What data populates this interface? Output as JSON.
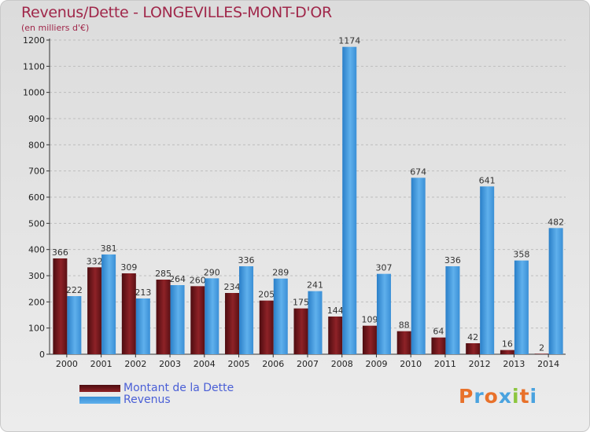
{
  "colors": {
    "dette": "#7a1a1d",
    "revenus": "#3f97dc",
    "title": "#a0274a",
    "legend_text": "#4a5fd6"
  },
  "chart_data": {
    "type": "bar",
    "title": "Revenus/Dette - LONGEVILLES-MONT-D'OR",
    "subtitle": "(en milliers d'€)",
    "categories": [
      "2000",
      "2001",
      "2002",
      "2003",
      "2004",
      "2005",
      "2006",
      "2007",
      "2008",
      "2009",
      "2010",
      "2011",
      "2012",
      "2013",
      "2014"
    ],
    "series": [
      {
        "name": "Montant de la Dette",
        "values": [
          366,
          332,
          309,
          285,
          260,
          234,
          205,
          175,
          144,
          109,
          88,
          64,
          42,
          16,
          2
        ]
      },
      {
        "name": "Revenus",
        "values": [
          222,
          381,
          213,
          264,
          290,
          336,
          289,
          241,
          1174,
          307,
          674,
          336,
          641,
          358,
          482
        ]
      }
    ],
    "ylim": [
      0,
      1200
    ],
    "yticks": [
      0,
      100,
      200,
      300,
      400,
      500,
      600,
      700,
      800,
      900,
      1000,
      1100,
      1200
    ],
    "grid": true,
    "legend_position": "bottom-left"
  },
  "logo": {
    "text": "Proxiti",
    "letters": [
      "P",
      "r",
      "o",
      "x",
      "i",
      "t",
      "i"
    ],
    "colors": [
      "#e8712a",
      "#4aa3df",
      "#e8712a",
      "#4aa3df",
      "#8cc63f",
      "#e8712a",
      "#4aa3df"
    ]
  }
}
